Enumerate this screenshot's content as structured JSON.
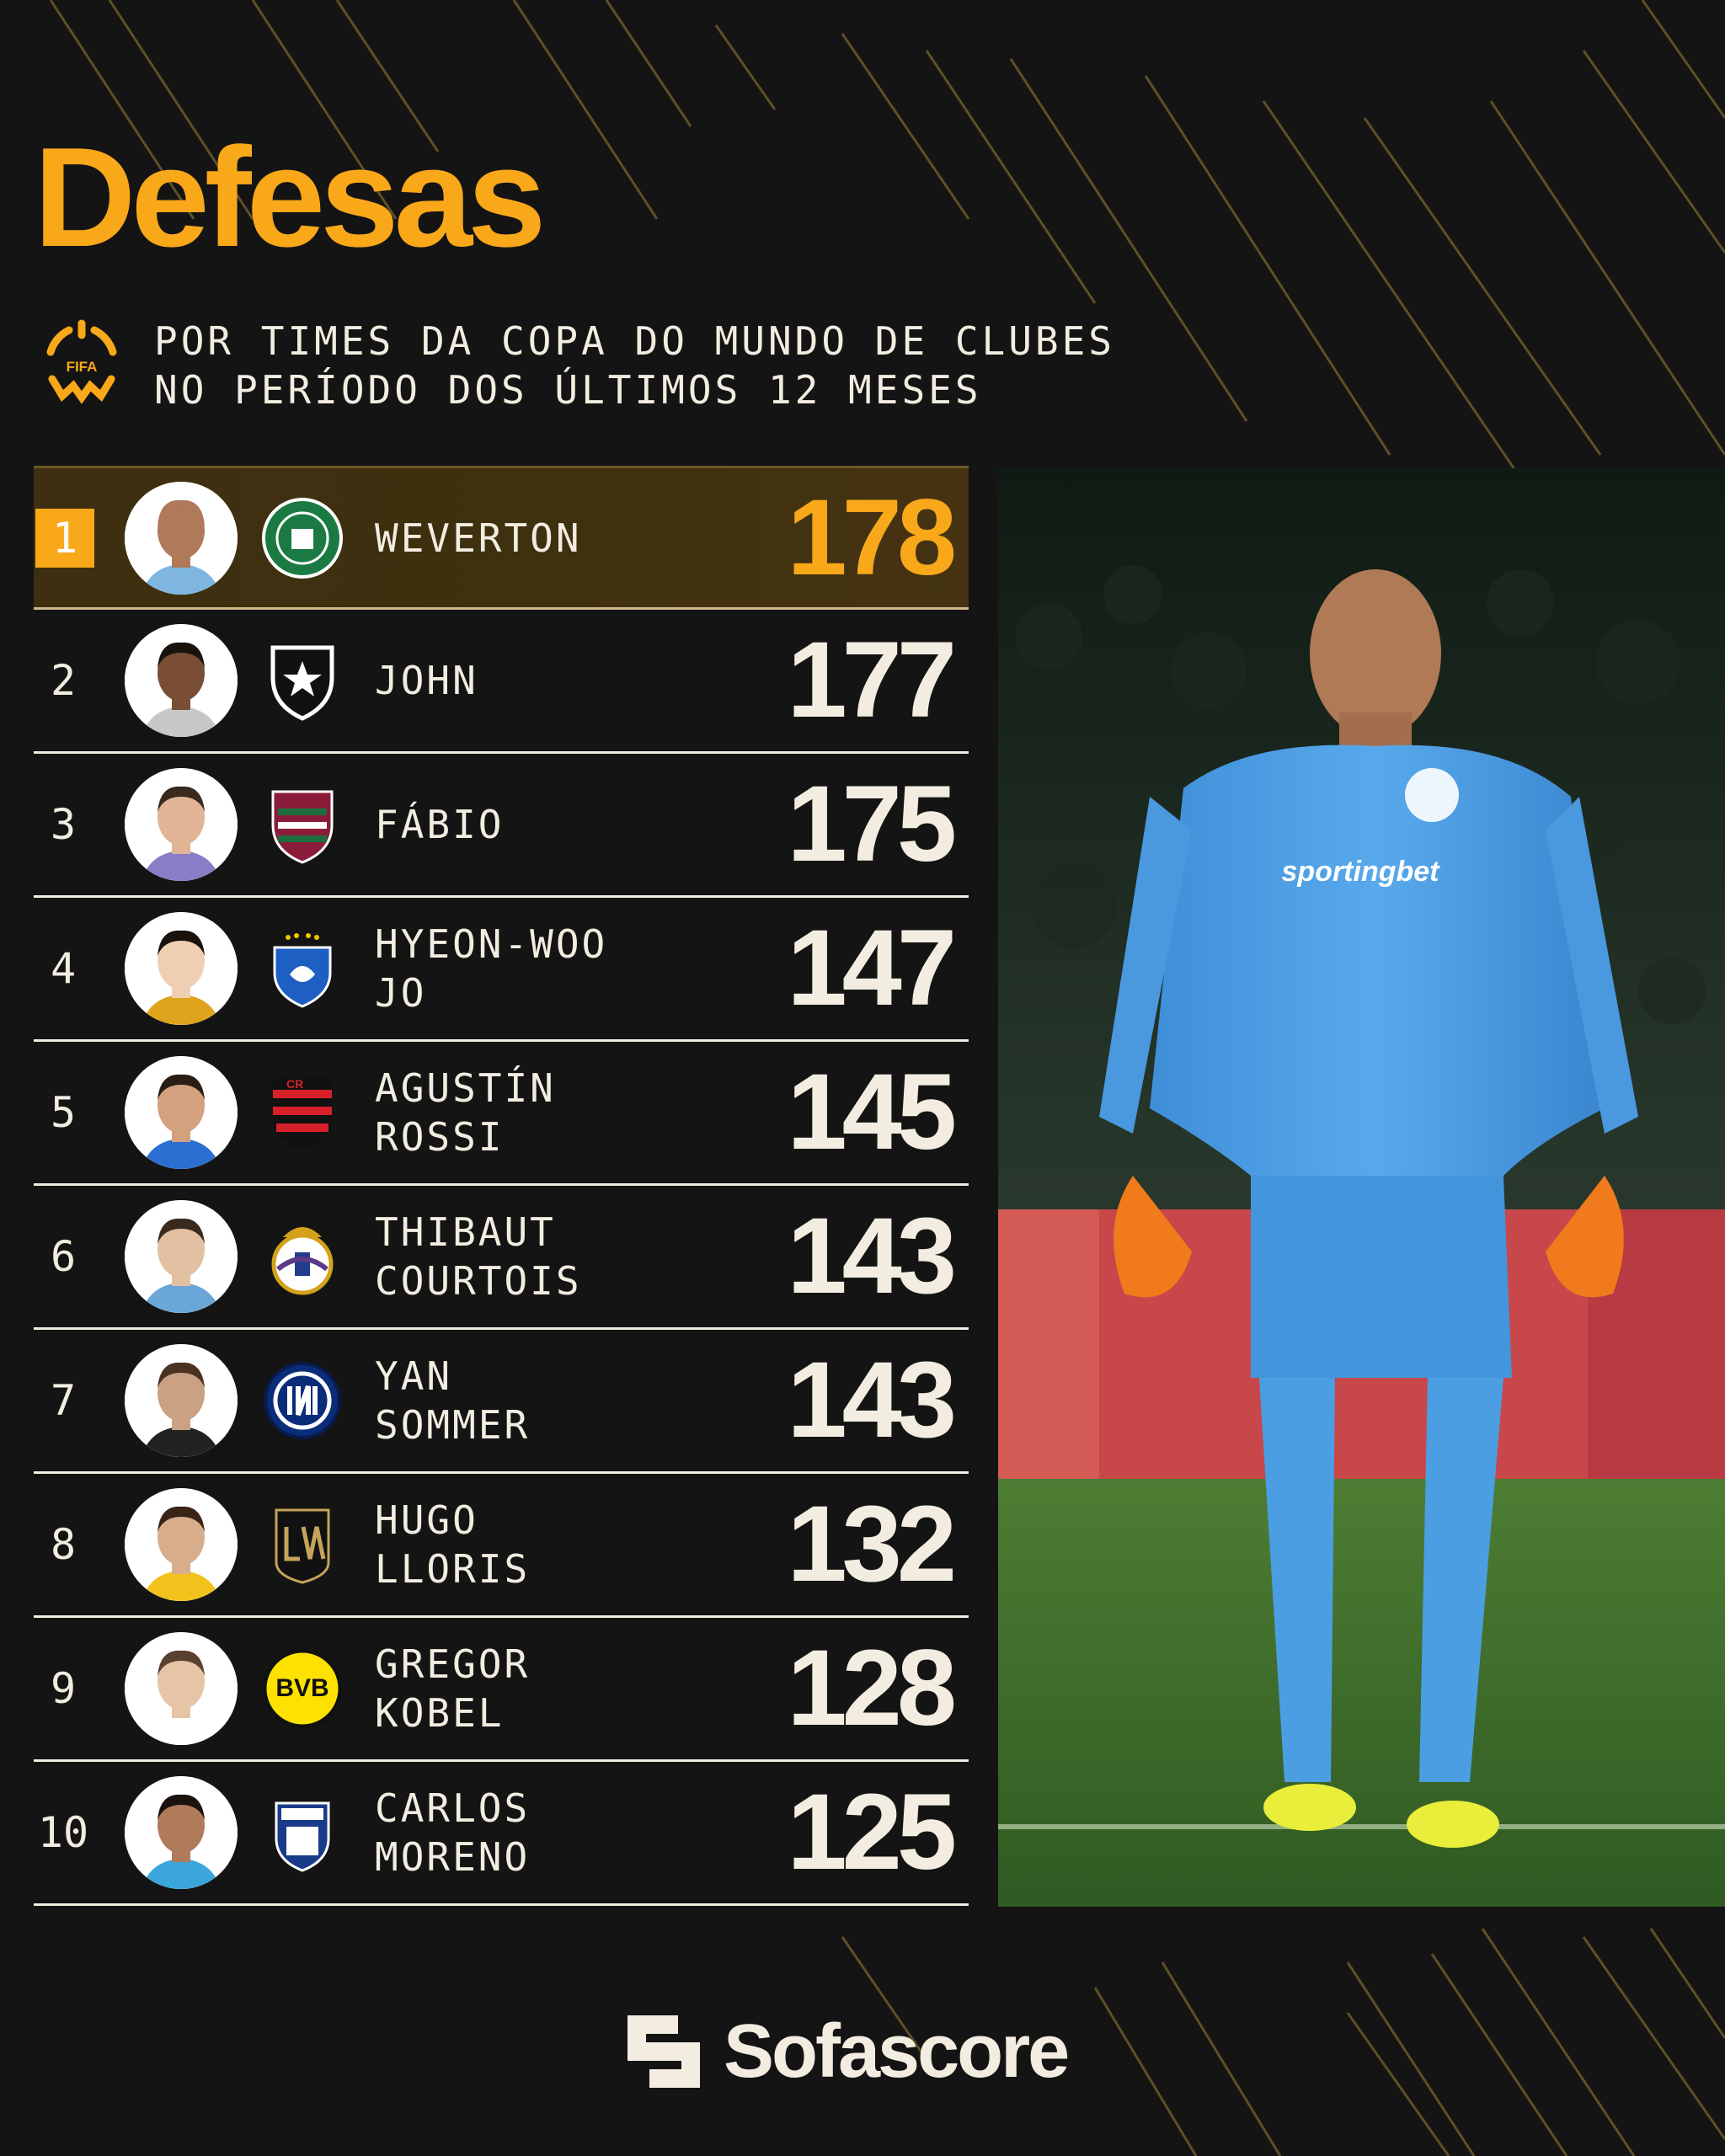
{
  "header": {
    "title": "Defesas",
    "subtitle_line1": "POR TIMES DA COPA DO MUNDO DE CLUBES",
    "subtitle_line2": "NO PERÍODO DOS ÚLTIMOS 12 MESES",
    "fifa_logo_text": "FIFA"
  },
  "colors": {
    "accent": "#f9a81a",
    "background": "#141414",
    "text": "#f2ede0"
  },
  "chart_data": {
    "type": "table",
    "title": "Defesas",
    "subtitle": "POR TIMES DA COPA DO MUNDO DE CLUBES NO PERÍODO DOS ÚLTIMOS 12 MESES",
    "rows": [
      {
        "rank": "1",
        "name_line1": "WEVERTON",
        "name_line2": "",
        "club_icon": "palmeiras-crest-icon",
        "value": 178
      },
      {
        "rank": "2",
        "name_line1": "JOHN",
        "name_line2": "",
        "club_icon": "botafogo-crest-icon",
        "value": 177
      },
      {
        "rank": "3",
        "name_line1": "FÁBIO",
        "name_line2": "",
        "club_icon": "fluminense-crest-icon",
        "value": 175
      },
      {
        "rank": "4",
        "name_line1": "HYEON-WOO",
        "name_line2": "JO",
        "club_icon": "ulsan-hd-crest-icon",
        "value": 147
      },
      {
        "rank": "5",
        "name_line1": "AGUSTÍN",
        "name_line2": "ROSSI",
        "club_icon": "flamengo-crest-icon",
        "value": 145
      },
      {
        "rank": "6",
        "name_line1": "THIBAUT",
        "name_line2": "COURTOIS",
        "club_icon": "real-madrid-crest-icon",
        "value": 143
      },
      {
        "rank": "7",
        "name_line1": "YAN",
        "name_line2": "SOMMER",
        "club_icon": "inter-crest-icon",
        "value": 143
      },
      {
        "rank": "8",
        "name_line1": "HUGO",
        "name_line2": "LLORIS",
        "club_icon": "lafc-crest-icon",
        "value": 132
      },
      {
        "rank": "9",
        "name_line1": "GREGOR",
        "name_line2": "KOBEL",
        "club_icon": "bvb-crest-icon",
        "value": 128
      },
      {
        "rank": "10",
        "name_line1": "CARLOS",
        "name_line2": "MORENO",
        "club_icon": "pachuca-crest-icon",
        "value": 125
      }
    ]
  },
  "photo": {
    "icon": "goalkeeper-photo",
    "shirt_sponsor": "sportingbet"
  },
  "footer": {
    "brand": "Sofascore",
    "brand_icon": "sofascore-logo-icon"
  }
}
